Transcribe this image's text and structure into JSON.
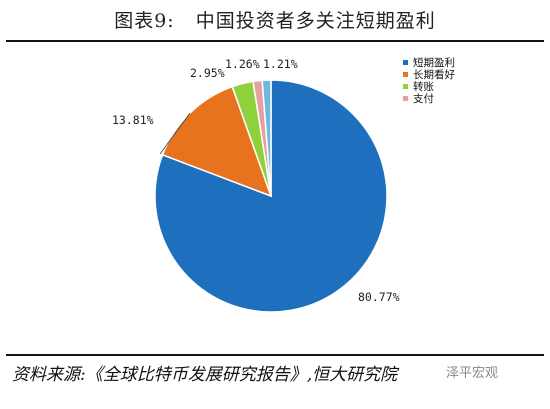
{
  "title": "图表9:   中国投资者多关注短期盈利",
  "source": "资料来源:《全球比特币发展研究报告》,恒大研究院",
  "watermark": "泽平宏观",
  "colors": {
    "series": [
      "#1f6fbf",
      "#e8731f",
      "#8fd13a",
      "#e6a0a0",
      "#6fb8e0"
    ]
  },
  "chart_data": {
    "type": "pie",
    "title": "图表9:   中国投资者多关注短期盈利",
    "legend_position": "top-right",
    "categories": [
      "短期盈利",
      "长期看好",
      "转账",
      "支付",
      ""
    ],
    "values": [
      80.77,
      13.81,
      2.95,
      1.26,
      1.21
    ],
    "labels": [
      "80.77%",
      "13.81%",
      "2.95%",
      "1.26%",
      "1.21%"
    ],
    "legend": [
      "短期盈利",
      "长期看好",
      "转账",
      "支付"
    ]
  }
}
